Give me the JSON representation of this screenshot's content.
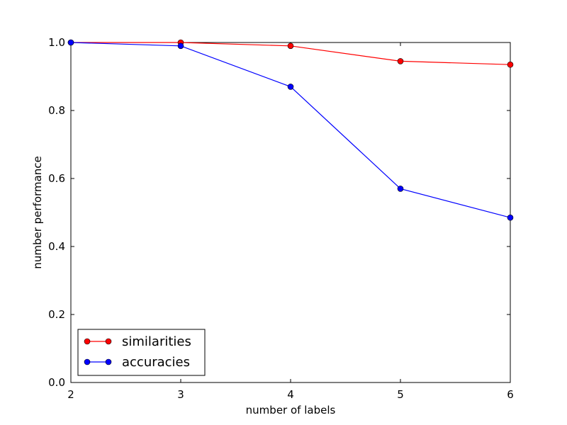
{
  "chart_data": {
    "type": "line",
    "title": "",
    "xlabel": "number of labels",
    "ylabel": "number performance",
    "xlim": [
      2,
      6
    ],
    "ylim": [
      0.0,
      1.0
    ],
    "xticks": [
      "2",
      "3",
      "4",
      "5",
      "6"
    ],
    "yticks": [
      "0.0",
      "0.2",
      "0.4",
      "0.6",
      "0.8",
      "1.0"
    ],
    "grid": false,
    "legend_position": "lower-left",
    "x": [
      2,
      3,
      4,
      5,
      6
    ],
    "series": [
      {
        "name": "similarities",
        "color": "#ff0000",
        "values": [
          1.0,
          1.0,
          0.99,
          0.945,
          0.935
        ]
      },
      {
        "name": "accuracies",
        "color": "#0000ff",
        "values": [
          1.0,
          0.99,
          0.87,
          0.57,
          0.485
        ]
      }
    ]
  }
}
